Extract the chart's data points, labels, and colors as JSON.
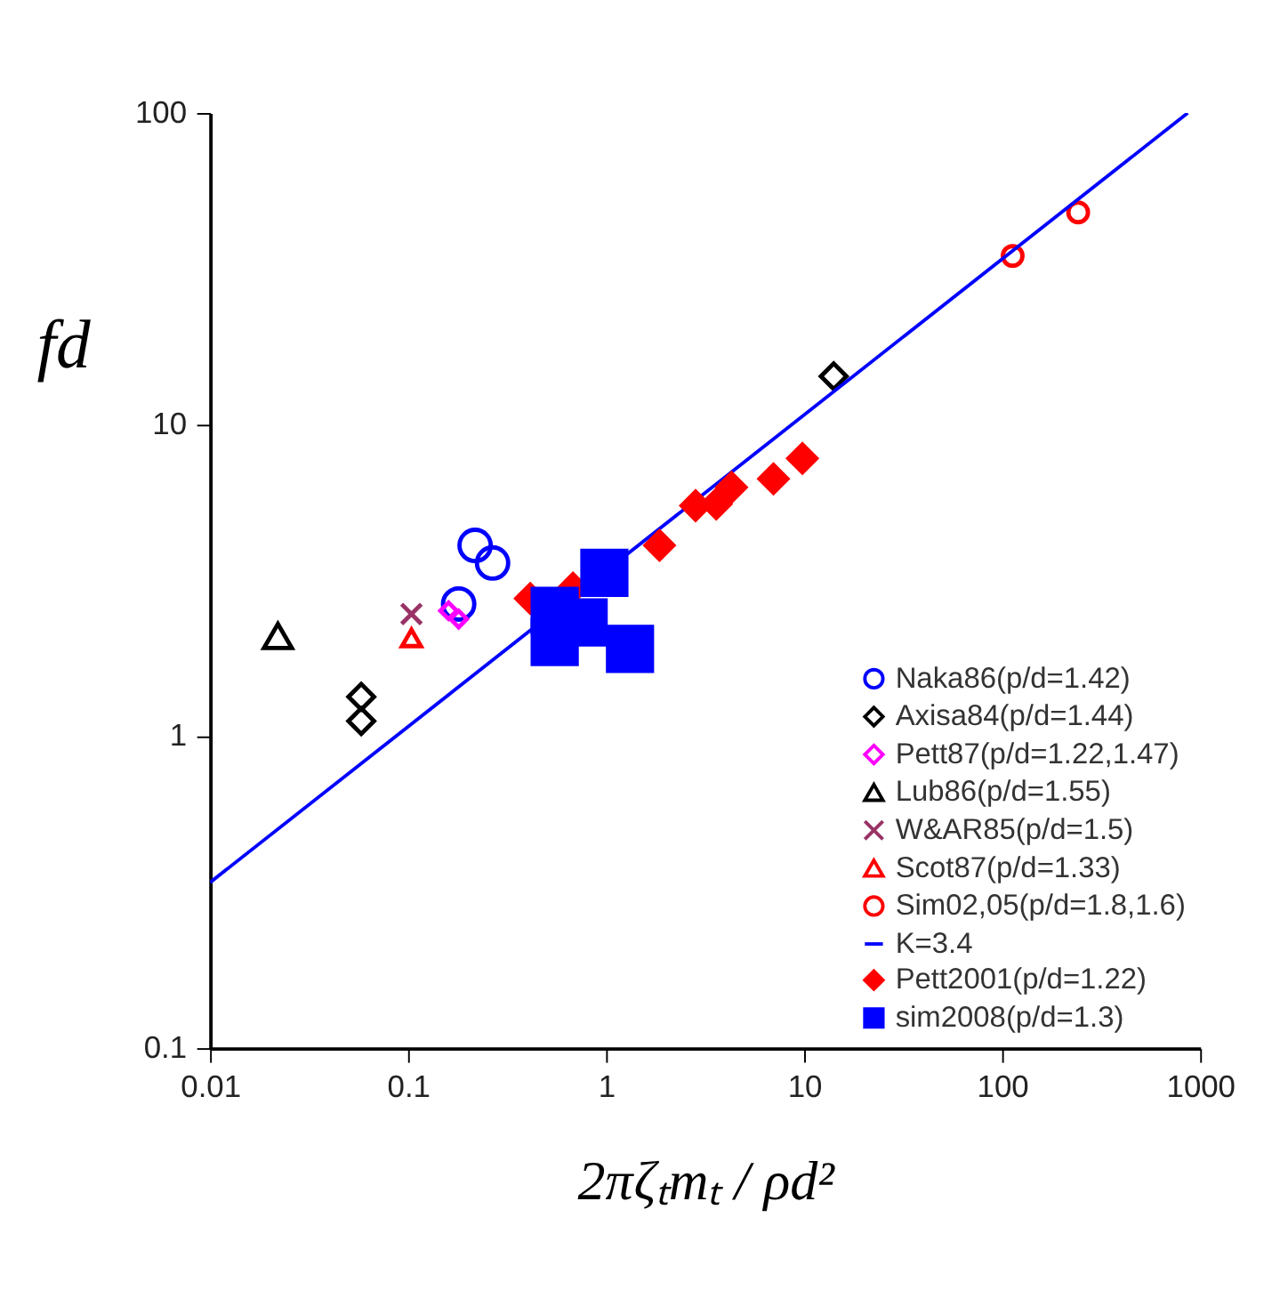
{
  "chart_data": {
    "type": "scatter",
    "xlabel": "2πζₜmₜ / ρd²",
    "ylabel": "fd",
    "log": "xy",
    "xlim": [
      0.01,
      1000
    ],
    "ylim": [
      0.1,
      100
    ],
    "xticks": [
      0.01,
      0.1,
      1,
      10,
      100,
      1000
    ],
    "yticks": [
      0.1,
      1,
      10,
      100
    ],
    "grid": false,
    "legend": "bottom right",
    "series": [
      {
        "name": "Naka86(p/d=1.42)",
        "color": "#0000ff",
        "marker": "circle",
        "x": [
          0.218,
          0.267,
          0.18
        ],
        "values": [
          4.1,
          3.6,
          2.66
        ]
      },
      {
        "name": "Axisa84(p/d=1.44)",
        "color": "#000000",
        "marker": "diamond",
        "x": [
          0.058,
          0.058,
          14.1
        ],
        "values": [
          1.34,
          1.12,
          14.3
        ]
      },
      {
        "name": "Pett87(p/d=1.22,1.47)",
        "color": "#ff00ff",
        "marker": "diamond",
        "x": [
          0.16,
          0.18
        ],
        "values": [
          2.53,
          2.38
        ]
      },
      {
        "name": "Lub86(p/d=1.55)",
        "color": "#000000",
        "marker": "triangle",
        "x": [
          0.022
        ],
        "values": [
          2.1
        ]
      },
      {
        "name": "W&AR85(p/d=1.5)",
        "color": "#993366",
        "marker": "cross",
        "x": [
          0.104
        ],
        "values": [
          2.47
        ]
      },
      {
        "name": "Scot87(p/d=1.33)",
        "color": "#ff0000",
        "marker": "triangle",
        "x": [
          0.104
        ],
        "values": [
          2.07
        ]
      },
      {
        "name": "Sim02,05(p/d=1.8,1.6)",
        "color": "#ff0000",
        "marker": "circle",
        "x": [
          113,
          242
        ],
        "values": [
          34.8,
          48
        ]
      },
      {
        "name": "K=3.4",
        "color": "#0000ff",
        "type": "line",
        "line_style": "solid",
        "marker": "none",
        "x": [
          0.01,
          865
        ],
        "values": [
          0.34,
          100
        ]
      },
      {
        "name": "Pett2001(p/d=1.22)",
        "color": "#ff0000",
        "marker": "diamond",
        "x": [
          0.414,
          0.68,
          1.86,
          2.83,
          3.6,
          4.3,
          7.0,
          9.8
        ],
        "values": [
          2.77,
          2.99,
          4.1,
          5.5,
          5.57,
          6.3,
          6.7,
          7.8
        ]
      },
      {
        "name": "sim2008(p/d=1.3)",
        "color": "#0000ff",
        "marker": "square",
        "x": [
          0.55,
          0.55,
          0.98,
          0.77,
          1.32
        ],
        "values": [
          2.53,
          2.01,
          3.35,
          2.32,
          1.91
        ]
      }
    ]
  }
}
